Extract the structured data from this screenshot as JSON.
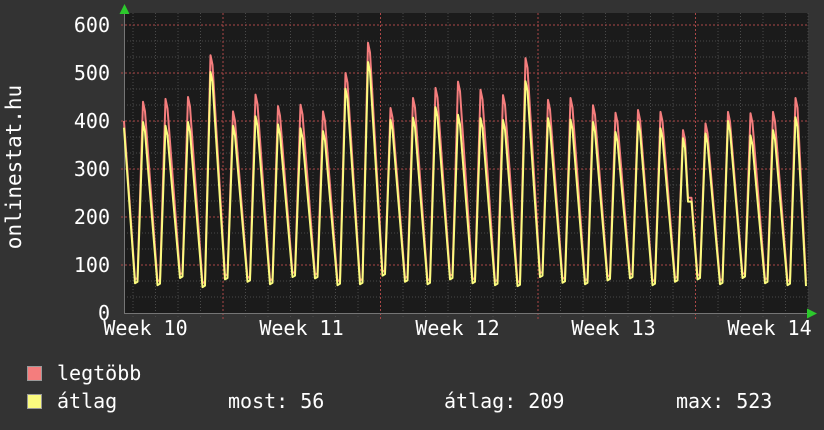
{
  "title": "onlinestat.hu",
  "colors": {
    "background": "#333333",
    "plot_background": "#1b1b1b",
    "grid_minor": "#4a4a4a",
    "grid_major": "#ab4747",
    "axis": "#757575",
    "arrow": "#2cc92c",
    "text": "#ffffff",
    "series_max": "#f47d7d",
    "series_avg": "#fbfb7f"
  },
  "legend": {
    "series": [
      {
        "label": "legtöbb",
        "color": "#f47d7d"
      },
      {
        "label": "átlag",
        "color": "#fbfb7f"
      }
    ],
    "stats": [
      {
        "text": "most: 56"
      },
      {
        "text": "átlag: 209"
      },
      {
        "text": "max: 523"
      }
    ]
  },
  "chart_data": {
    "type": "line",
    "title": "onlinestat.hu",
    "xlabel": "",
    "ylabel": "",
    "ylim": [
      0,
      625
    ],
    "y_ticks": [
      0,
      100,
      200,
      300,
      400,
      500,
      600
    ],
    "x_tick_labels": [
      "Week 10",
      "Week 11",
      "Week 12",
      "Week 13",
      "Week 14"
    ],
    "grid": true,
    "legend_position": "bottom",
    "x_description": "30 daily cycles spanning ISO weeks 10-14, weekly red gridlines, daily minor gridlines",
    "series": [
      {
        "name": "legtöbb",
        "color": "#f47d7d",
        "daily_peaks": [
          440,
          446,
          450,
          537,
          420,
          455,
          431,
          434,
          420,
          500,
          563,
          427,
          448,
          469,
          482,
          465,
          454,
          531,
          444,
          448,
          433,
          417,
          423,
          419,
          381,
          395,
          419,
          416,
          419,
          448
        ],
        "start_value": 400,
        "end_value": 66
      },
      {
        "name": "átlag",
        "color": "#fbfb7f",
        "daily_peaks": [
          398,
          390,
          398,
          502,
          390,
          410,
          393,
          385,
          379,
          467,
          523,
          402,
          407,
          429,
          413,
          406,
          402,
          483,
          406,
          403,
          398,
          377,
          399,
          385,
          364,
          374,
          400,
          370,
          381,
          408
        ],
        "start_value": 386,
        "end_value": 56
      }
    ],
    "daily_troughs": [
      62,
      58,
      73,
      54,
      70,
      65,
      60,
      75,
      72,
      58,
      60,
      78,
      65,
      60,
      70,
      62,
      58,
      56,
      75,
      63,
      60,
      68,
      72,
      58,
      65,
      70,
      60,
      73,
      62,
      58
    ],
    "step_anomaly": {
      "day_index": 24,
      "plateau_value": 232
    },
    "stats": {
      "most": 56,
      "atlag": 209,
      "max": 523
    }
  }
}
